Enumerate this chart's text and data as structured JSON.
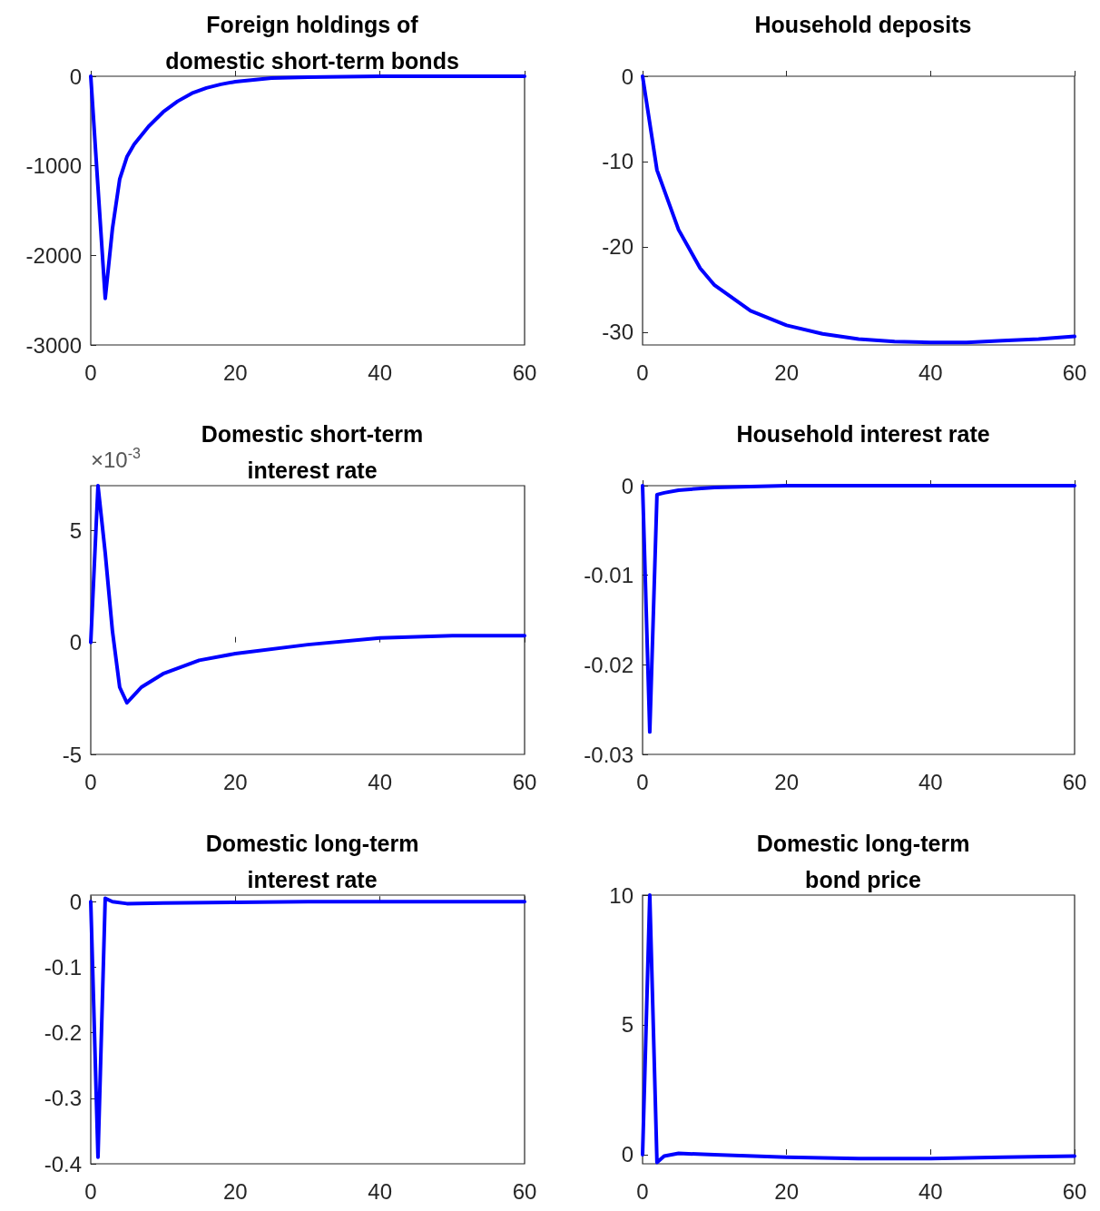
{
  "chart_data": [
    {
      "type": "line",
      "title": "Foreign holdings of\ndomestic short-term bonds",
      "x": [
        0,
        1,
        2,
        3,
        4,
        5,
        6,
        8,
        10,
        12,
        14,
        16,
        18,
        20,
        25,
        30,
        40,
        50,
        60
      ],
      "series": [
        {
          "color": "#0000ff",
          "values": [
            0,
            -1240,
            -2480,
            -1700,
            -1150,
            -900,
            -760,
            -560,
            -400,
            -280,
            -190,
            -130,
            -90,
            -60,
            -20,
            -10,
            0,
            0,
            0
          ]
        }
      ],
      "xlim": [
        0,
        60
      ],
      "xticks": [
        0,
        20,
        40,
        60
      ],
      "ylim": [
        -3000,
        0
      ],
      "yticks": [
        -3000,
        -2000,
        -1000,
        0
      ],
      "grid": false
    },
    {
      "type": "line",
      "title": "Household deposits",
      "x": [
        0,
        2,
        5,
        8,
        10,
        15,
        20,
        25,
        30,
        35,
        40,
        45,
        50,
        55,
        60
      ],
      "series": [
        {
          "color": "#0000ff",
          "values": [
            0,
            -11,
            -18,
            -22.5,
            -24.5,
            -27.5,
            -29.2,
            -30.2,
            -30.8,
            -31.1,
            -31.2,
            -31.2,
            -31,
            -30.8,
            -30.5
          ]
        }
      ],
      "xlim": [
        0,
        60
      ],
      "xticks": [
        0,
        20,
        40,
        60
      ],
      "ylim": [
        -31.5,
        0
      ],
      "yticks": [
        -30,
        -20,
        -10,
        0
      ],
      "grid": false
    },
    {
      "type": "line",
      "title": "Domestic short-term\ninterest rate",
      "annotations": [
        "×10$^{-3}$"
      ],
      "x": [
        0,
        1,
        2,
        3,
        4,
        5,
        7,
        10,
        15,
        20,
        30,
        40,
        50,
        60
      ],
      "series": [
        {
          "color": "#0000ff",
          "values": [
            0,
            7,
            4,
            0.5,
            -2,
            -2.7,
            -2,
            -1.4,
            -0.8,
            -0.5,
            -0.1,
            0.2,
            0.3,
            0.3
          ]
        }
      ],
      "xlim": [
        0,
        60
      ],
      "xticks": [
        0,
        20,
        40,
        60
      ],
      "ylim": [
        -5,
        7
      ],
      "yticks": [
        -5,
        0,
        5
      ],
      "grid": false
    },
    {
      "type": "line",
      "title": "Household interest rate",
      "x": [
        0,
        1,
        2,
        3,
        5,
        10,
        20,
        30,
        40,
        50,
        60
      ],
      "series": [
        {
          "color": "#0000ff",
          "values": [
            0,
            -0.0275,
            -0.001,
            -0.0008,
            -0.0005,
            -0.0002,
            0,
            0,
            0,
            0,
            0
          ]
        }
      ],
      "xlim": [
        0,
        60
      ],
      "xticks": [
        0,
        20,
        40,
        60
      ],
      "ylim": [
        -0.03,
        0
      ],
      "yticks": [
        -0.03,
        -0.02,
        -0.01,
        0
      ],
      "grid": false
    },
    {
      "type": "line",
      "title": "Domestic long-term\ninterest rate",
      "x": [
        0,
        1,
        2,
        3,
        5,
        10,
        20,
        30,
        40,
        50,
        60
      ],
      "series": [
        {
          "color": "#0000ff",
          "values": [
            0,
            -0.39,
            0.005,
            0,
            -0.003,
            -0.002,
            -0.001,
            0,
            0,
            0,
            0
          ]
        }
      ],
      "xlim": [
        0,
        60
      ],
      "xticks": [
        0,
        20,
        40,
        60
      ],
      "ylim": [
        -0.4,
        0.01
      ],
      "yticks": [
        -0.4,
        -0.3,
        -0.2,
        -0.1,
        0
      ],
      "grid": false
    },
    {
      "type": "line",
      "title": "Domestic long-term\nbond price",
      "x": [
        0,
        1,
        2,
        3,
        5,
        10,
        20,
        30,
        40,
        50,
        60
      ],
      "series": [
        {
          "color": "#0000ff",
          "values": [
            0,
            10,
            -0.3,
            -0.05,
            0.05,
            0,
            -0.1,
            -0.15,
            -0.15,
            -0.1,
            -0.05
          ]
        }
      ],
      "xlim": [
        0,
        60
      ],
      "xticks": [
        0,
        20,
        40,
        60
      ],
      "ylim": [
        -0.35,
        10
      ],
      "yticks": [
        0,
        5,
        10
      ],
      "grid": false
    }
  ]
}
